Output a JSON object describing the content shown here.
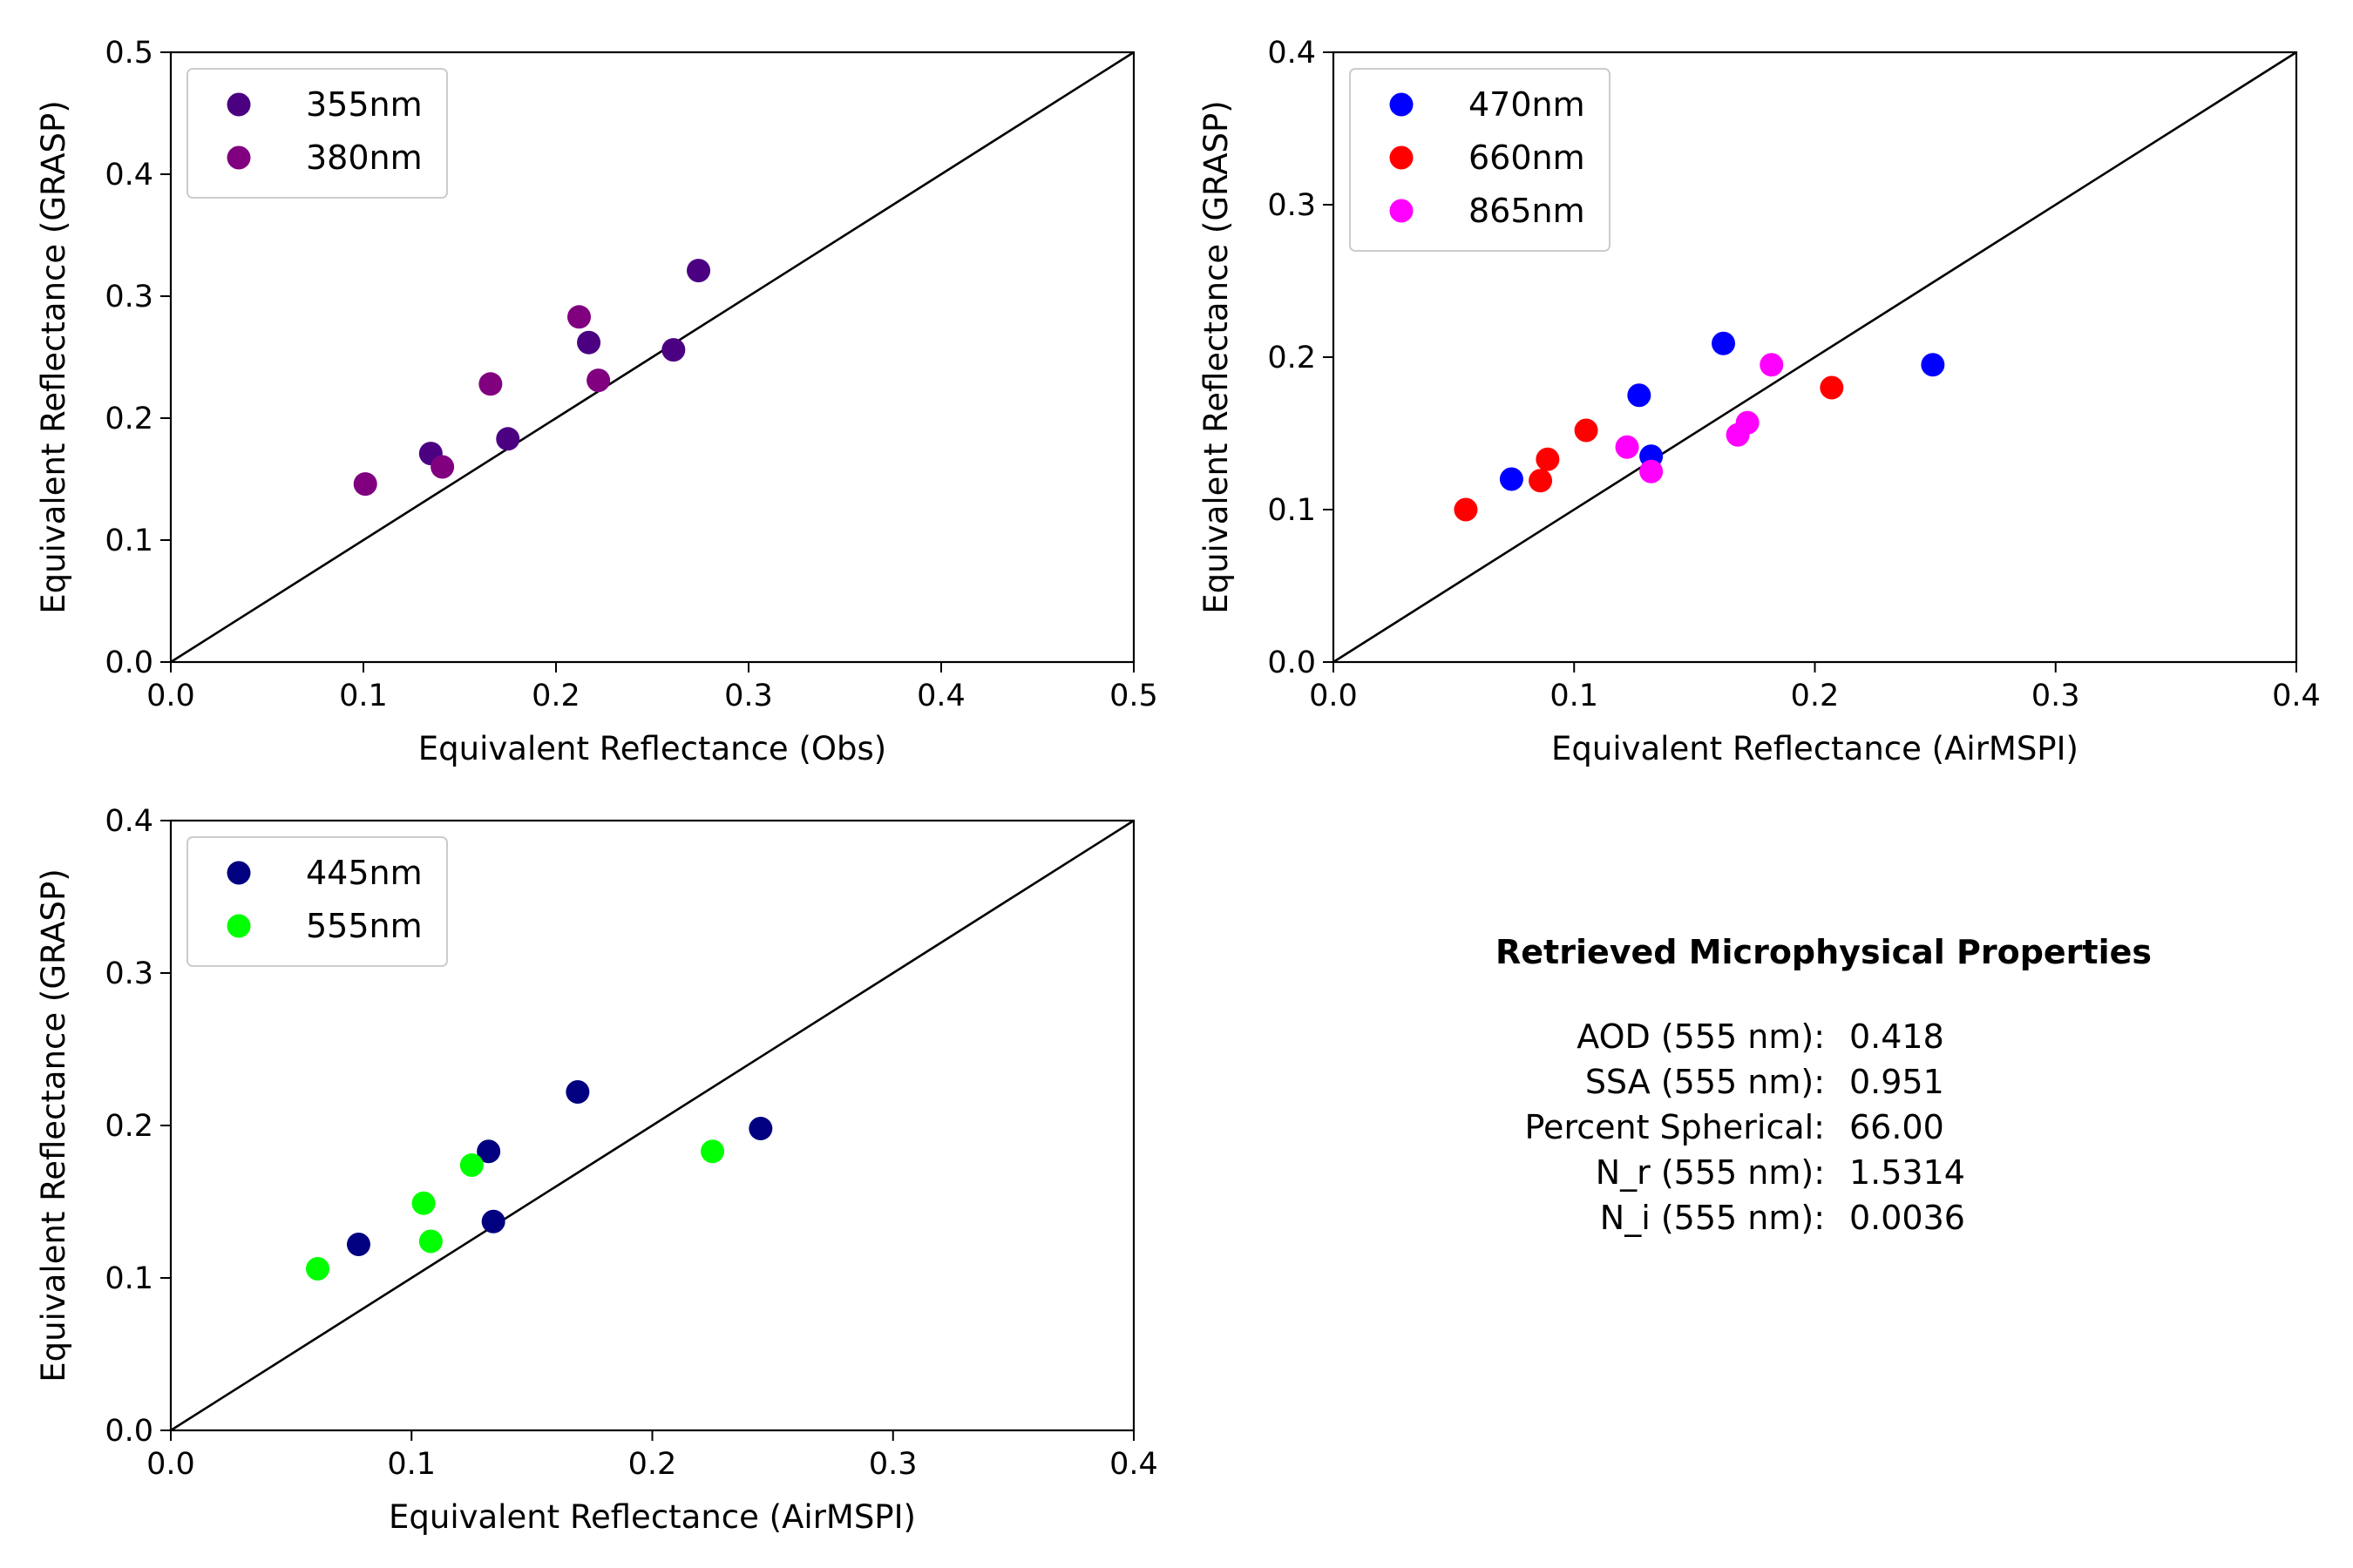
{
  "chart_data": [
    {
      "type": "scatter",
      "xlabel": "Equivalent Reflectance (Obs)",
      "ylabel": "Equivalent Reflectance (GRASP)",
      "xlim": [
        0,
        0.5
      ],
      "ylim": [
        0,
        0.5
      ],
      "xticks": [
        "0.0",
        "0.1",
        "0.2",
        "0.3",
        "0.4",
        "0.5"
      ],
      "yticks": [
        "0.0",
        "0.1",
        "0.2",
        "0.3",
        "0.4",
        "0.5"
      ],
      "one_to_one_line": true,
      "legend_position": "upper-left",
      "series": [
        {
          "name": "355nm",
          "color": "#4b0082",
          "points": [
            [
              0.135,
              0.171
            ],
            [
              0.175,
              0.183
            ],
            [
              0.217,
              0.262
            ],
            [
              0.261,
              0.256
            ],
            [
              0.274,
              0.321
            ]
          ]
        },
        {
          "name": "380nm",
          "color": "#800080",
          "points": [
            [
              0.101,
              0.146
            ],
            [
              0.141,
              0.16
            ],
            [
              0.166,
              0.228
            ],
            [
              0.212,
              0.283
            ],
            [
              0.222,
              0.231
            ]
          ]
        }
      ]
    },
    {
      "type": "scatter",
      "xlabel": "Equivalent Reflectance (AirMSPI)",
      "ylabel": "Equivalent Reflectance (GRASP)",
      "xlim": [
        0,
        0.4
      ],
      "ylim": [
        0,
        0.4
      ],
      "xticks": [
        "0.0",
        "0.1",
        "0.2",
        "0.3",
        "0.4"
      ],
      "yticks": [
        "0.0",
        "0.1",
        "0.2",
        "0.3",
        "0.4"
      ],
      "one_to_one_line": true,
      "legend_position": "upper-left",
      "series": [
        {
          "name": "470nm",
          "color": "#0000ff",
          "points": [
            [
              0.074,
              0.12
            ],
            [
              0.127,
              0.175
            ],
            [
              0.132,
              0.135
            ],
            [
              0.162,
              0.209
            ],
            [
              0.249,
              0.195
            ]
          ]
        },
        {
          "name": "660nm",
          "color": "#ff0000",
          "points": [
            [
              0.055,
              0.1
            ],
            [
              0.086,
              0.119
            ],
            [
              0.089,
              0.133
            ],
            [
              0.105,
              0.152
            ],
            [
              0.207,
              0.18
            ]
          ]
        },
        {
          "name": "865nm",
          "color": "#ff00ff",
          "points": [
            [
              0.122,
              0.141
            ],
            [
              0.132,
              0.125
            ],
            [
              0.168,
              0.149
            ],
            [
              0.172,
              0.157
            ],
            [
              0.182,
              0.195
            ]
          ]
        }
      ]
    },
    {
      "type": "scatter",
      "xlabel": "Equivalent Reflectance (AirMSPI)",
      "ylabel": "Equivalent Reflectance (GRASP)",
      "xlim": [
        0,
        0.4
      ],
      "ylim": [
        0,
        0.4
      ],
      "xticks": [
        "0.0",
        "0.1",
        "0.2",
        "0.3",
        "0.4"
      ],
      "yticks": [
        "0.0",
        "0.1",
        "0.2",
        "0.3",
        "0.4"
      ],
      "one_to_one_line": true,
      "legend_position": "upper-left",
      "series": [
        {
          "name": "445nm",
          "color": "#000080",
          "points": [
            [
              0.078,
              0.122
            ],
            [
              0.132,
              0.183
            ],
            [
              0.134,
              0.137
            ],
            [
              0.169,
              0.222
            ],
            [
              0.245,
              0.198
            ]
          ]
        },
        {
          "name": "555nm",
          "color": "#00ff00",
          "points": [
            [
              0.061,
              0.106
            ],
            [
              0.105,
              0.149
            ],
            [
              0.108,
              0.124
            ],
            [
              0.125,
              0.174
            ],
            [
              0.225,
              0.183
            ]
          ]
        }
      ]
    }
  ],
  "properties_panel": {
    "title": "Retrieved Microphysical Properties",
    "rows": [
      {
        "label": "AOD (555 nm):",
        "value": "0.418"
      },
      {
        "label": "SSA (555 nm):",
        "value": "0.951"
      },
      {
        "label": "Percent Spherical:",
        "value": "66.00"
      },
      {
        "label": "N_r (555 nm):",
        "value": "1.5314"
      },
      {
        "label": "N_i (555 nm):",
        "value": "0.0036"
      }
    ]
  }
}
